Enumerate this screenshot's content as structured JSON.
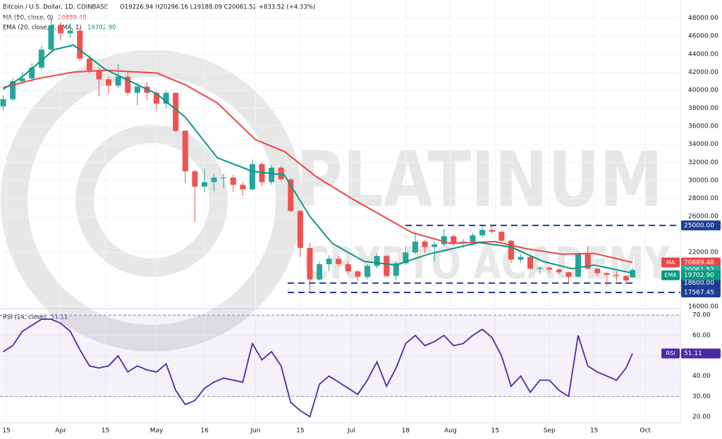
{
  "chart_data": [
    {
      "type": "candlestick",
      "title": "Bitcoin / U.S. Dollar, 1D, COINBASE",
      "ohlc_text": "O19226.94 H20296.16 L19188.09 C20061.52 +833.52 (+4.33%)",
      "watermark": [
        "PLATINUM",
        "CRYPTO ACADEMY"
      ],
      "up_color": "#26a69a",
      "down_color": "#ef5350",
      "x": [
        "03-14",
        "03-17",
        "03-20",
        "03-23",
        "03-26",
        "03-29",
        "04-01",
        "04-04",
        "04-07",
        "04-10",
        "04-13",
        "04-16",
        "04-19",
        "04-22",
        "04-25",
        "04-28",
        "05-01",
        "05-04",
        "05-07",
        "05-10",
        "05-13",
        "05-16",
        "05-19",
        "05-22",
        "05-25",
        "05-28",
        "05-31",
        "06-03",
        "06-06",
        "06-09",
        "06-12",
        "06-15",
        "06-18",
        "06-21",
        "06-24",
        "06-27",
        "06-30",
        "07-03",
        "07-06",
        "07-09",
        "07-12",
        "07-15",
        "07-18",
        "07-21",
        "07-24",
        "07-27",
        "07-30",
        "08-02",
        "08-05",
        "08-08",
        "08-11",
        "08-14",
        "08-17",
        "08-20",
        "08-23",
        "08-26",
        "08-29",
        "09-01",
        "09-04",
        "09-07",
        "09-10",
        "09-13",
        "09-16",
        "09-19",
        "09-22",
        "09-25",
        "09-27"
      ],
      "ohlc": [
        [
          38200,
          39400,
          37800,
          39000
        ],
        [
          39000,
          41300,
          38800,
          41000
        ],
        [
          41000,
          42000,
          40600,
          41300
        ],
        [
          41300,
          43000,
          40900,
          42500
        ],
        [
          42500,
          44900,
          42200,
          44500
        ],
        [
          44500,
          48100,
          44300,
          47200
        ],
        [
          47200,
          47500,
          45500,
          46300
        ],
        [
          46300,
          47400,
          45800,
          46600
        ],
        [
          46600,
          46900,
          43200,
          43500
        ],
        [
          43500,
          43900,
          41800,
          42200
        ],
        [
          42200,
          42500,
          39300,
          41200
        ],
        [
          41200,
          41500,
          39600,
          40500
        ],
        [
          40500,
          42900,
          40200,
          41500
        ],
        [
          41500,
          42000,
          39400,
          39700
        ],
        [
          39700,
          40800,
          38300,
          40400
        ],
        [
          40400,
          40900,
          38900,
          39700
        ],
        [
          39700,
          39900,
          37800,
          38500
        ],
        [
          38500,
          40000,
          38000,
          39700
        ],
        [
          39700,
          39800,
          35300,
          35500
        ],
        [
          35500,
          35600,
          29700,
          31000
        ],
        [
          31000,
          31200,
          25400,
          29300
        ],
        [
          29300,
          31300,
          28700,
          29800
        ],
        [
          29800,
          30700,
          28800,
          30300
        ],
        [
          30300,
          30700,
          29100,
          30300
        ],
        [
          30300,
          30600,
          28700,
          29500
        ],
        [
          29500,
          29800,
          28300,
          29000
        ],
        [
          29000,
          32300,
          28900,
          31800
        ],
        [
          31800,
          32000,
          29400,
          29800
        ],
        [
          29800,
          31700,
          29500,
          31400
        ],
        [
          31400,
          31600,
          29900,
          30100
        ],
        [
          30100,
          30200,
          26500,
          26600
        ],
        [
          26600,
          26700,
          21500,
          22500
        ],
        [
          22500,
          23100,
          17600,
          19000
        ],
        [
          19000,
          21000,
          18900,
          20700
        ],
        [
          20700,
          21700,
          19900,
          21300
        ],
        [
          21300,
          21600,
          20400,
          20700
        ],
        [
          20700,
          21000,
          19600,
          19900
        ],
        [
          19900,
          20000,
          18800,
          19300
        ],
        [
          19300,
          20700,
          19000,
          20500
        ],
        [
          20500,
          21900,
          20200,
          21600
        ],
        [
          21600,
          21700,
          19300,
          19400
        ],
        [
          19400,
          21000,
          18900,
          20800
        ],
        [
          20800,
          22700,
          20600,
          22000
        ],
        [
          22000,
          24200,
          21800,
          23200
        ],
        [
          23200,
          23400,
          21900,
          22600
        ],
        [
          22600,
          23200,
          21000,
          22900
        ],
        [
          22900,
          24600,
          22700,
          23800
        ],
        [
          23800,
          24000,
          22700,
          23000
        ],
        [
          23000,
          23500,
          22500,
          23200
        ],
        [
          23200,
          24200,
          22800,
          23900
        ],
        [
          23900,
          24900,
          23600,
          24500
        ],
        [
          24500,
          25100,
          24100,
          24300
        ],
        [
          24300,
          24400,
          23200,
          23300
        ],
        [
          23300,
          23400,
          20800,
          21200
        ],
        [
          21200,
          21800,
          20900,
          21500
        ],
        [
          21500,
          21700,
          20100,
          20200
        ],
        [
          20200,
          20500,
          19600,
          20300
        ],
        [
          20300,
          20400,
          19700,
          20100
        ],
        [
          20100,
          20200,
          19600,
          19800
        ],
        [
          19800,
          19900,
          18600,
          19300
        ],
        [
          19300,
          22000,
          19200,
          21800
        ],
        [
          21800,
          22700,
          20100,
          20200
        ],
        [
          20200,
          20300,
          19400,
          19700
        ],
        [
          19700,
          19800,
          18300,
          19500
        ],
        [
          19500,
          19900,
          18800,
          19400
        ],
        [
          19400,
          19500,
          18500,
          18900
        ],
        [
          19226.94,
          20296.16,
          19188.09,
          20061.52
        ]
      ],
      "overlays": [
        {
          "name": "MA (50, close, 0)",
          "tag": "MA",
          "color": "#ef4444",
          "x": [
            "03-14",
            "03-25",
            "04-05",
            "04-15",
            "05-01",
            "05-10",
            "05-20",
            "06-01",
            "06-10",
            "06-20",
            "07-01",
            "07-10",
            "07-20",
            "08-01",
            "08-15",
            "08-25",
            "09-05",
            "09-15",
            "09-27"
          ],
          "values": [
            40300,
            41300,
            42000,
            42200,
            41900,
            40600,
            38600,
            34500,
            33200,
            30400,
            28000,
            26200,
            24200,
            23000,
            23200,
            22400,
            21800,
            21900,
            20889.48
          ]
        },
        {
          "name": "EMA (20, close, 0, SMA, 1)",
          "tag": "EMA",
          "color": "#089981",
          "last_label": "19702.90",
          "x": [
            "03-14",
            "03-20",
            "03-30",
            "04-05",
            "04-15",
            "05-01",
            "05-10",
            "05-20",
            "05-31",
            "06-10",
            "06-18",
            "06-25",
            "07-05",
            "07-15",
            "07-25",
            "08-10",
            "08-20",
            "08-30",
            "09-08",
            "09-15",
            "09-27"
          ],
          "values": [
            40100,
            41500,
            44500,
            45000,
            42300,
            39600,
            37000,
            32500,
            31000,
            30600,
            26000,
            23000,
            21000,
            20600,
            21800,
            23100,
            22600,
            21000,
            20200,
            20600,
            19702.9
          ]
        }
      ],
      "levels": [
        {
          "value": 25000,
          "label": "25000.00"
        },
        {
          "value": 18600,
          "label": "18600.00"
        },
        {
          "value": 17567.45,
          "label": "17567.45"
        }
      ],
      "level_color": "#1c3f95",
      "xlim": [
        "03-13",
        "10-12"
      ],
      "ylim": [
        16000,
        50000
      ],
      "yticks": [
        {
          "value": 48000,
          "label": "48000.00"
        },
        {
          "value": 46000,
          "label": "46000.00"
        },
        {
          "value": 44000,
          "label": "44000.00"
        },
        {
          "value": 42000,
          "label": "42000.00"
        },
        {
          "value": 40000,
          "label": "40000.00"
        },
        {
          "value": 38000,
          "label": "38000.00"
        },
        {
          "value": 36000,
          "label": "36000.00"
        },
        {
          "value": 34000,
          "label": "34000.00"
        },
        {
          "value": 32000,
          "label": "32000.00"
        },
        {
          "value": 30000,
          "label": "30000.00"
        },
        {
          "value": 28000,
          "label": "28000.00"
        },
        {
          "value": 26000,
          "label": "26000.00"
        },
        {
          "value": 22000,
          "label": "22000.00"
        },
        {
          "value": 16000,
          "label": "16000.00"
        }
      ],
      "grid": true
    },
    {
      "type": "line",
      "title": "RSI (14, close)",
      "tag": "RSI",
      "color": "#4b2aa6",
      "band": [
        30,
        70
      ],
      "x": [
        "03-14",
        "03-17",
        "03-20",
        "03-23",
        "03-26",
        "03-29",
        "04-01",
        "04-04",
        "04-07",
        "04-10",
        "04-13",
        "04-16",
        "04-19",
        "04-22",
        "04-25",
        "04-28",
        "05-01",
        "05-04",
        "05-07",
        "05-10",
        "05-13",
        "05-16",
        "05-19",
        "05-22",
        "05-25",
        "05-28",
        "05-31",
        "06-03",
        "06-06",
        "06-09",
        "06-12",
        "06-15",
        "06-18",
        "06-21",
        "06-24",
        "06-27",
        "06-30",
        "07-03",
        "07-06",
        "07-09",
        "07-12",
        "07-15",
        "07-18",
        "07-21",
        "07-24",
        "07-27",
        "07-30",
        "08-02",
        "08-05",
        "08-08",
        "08-11",
        "08-14",
        "08-17",
        "08-20",
        "08-23",
        "08-26",
        "08-29",
        "09-01",
        "09-04",
        "09-07",
        "09-10",
        "09-13",
        "09-16",
        "09-19",
        "09-22",
        "09-25",
        "09-27"
      ],
      "values": [
        52,
        55,
        62,
        65,
        68,
        68,
        66,
        62,
        53,
        45,
        44,
        45,
        50,
        42,
        45,
        43,
        42,
        46,
        33,
        26,
        28,
        34,
        37,
        39,
        38,
        37,
        56,
        48,
        52,
        45,
        27,
        23,
        20,
        36,
        40,
        37,
        34,
        31,
        38,
        47,
        35,
        44,
        56,
        60,
        55,
        57,
        60,
        55,
        56,
        60,
        63,
        59,
        50,
        35,
        40,
        32,
        38,
        38,
        33,
        30,
        60,
        45,
        42,
        40,
        38,
        44,
        51.11
      ],
      "xlim": [
        "03-13",
        "10-12"
      ],
      "ylim": [
        17,
        72.5
      ],
      "yticks": [
        {
          "value": 70,
          "label": "70.00"
        },
        {
          "value": 60,
          "label": "60.00"
        },
        {
          "value": 50,
          "label": "50.00"
        },
        {
          "value": 40,
          "label": "40.00"
        },
        {
          "value": 30,
          "label": "30.00"
        },
        {
          "value": 20,
          "label": "20.00"
        }
      ],
      "xticks": [
        {
          "value": "03-15",
          "label": "15"
        },
        {
          "value": "04-01",
          "label": "Apr"
        },
        {
          "value": "04-15",
          "label": "15"
        },
        {
          "value": "05-01",
          "label": "May"
        },
        {
          "value": "05-16",
          "label": "16"
        },
        {
          "value": "06-01",
          "label": "Jun"
        },
        {
          "value": "06-15",
          "label": "15"
        },
        {
          "value": "07-01",
          "label": "Jul"
        },
        {
          "value": "07-18",
          "label": "18"
        },
        {
          "value": "08-01",
          "label": "Aug"
        },
        {
          "value": "08-15",
          "label": "15"
        },
        {
          "value": "09-01",
          "label": "Sep"
        },
        {
          "value": "09-15",
          "label": "15"
        },
        {
          "value": "10-01",
          "label": "Oct"
        }
      ],
      "grid": true
    }
  ]
}
